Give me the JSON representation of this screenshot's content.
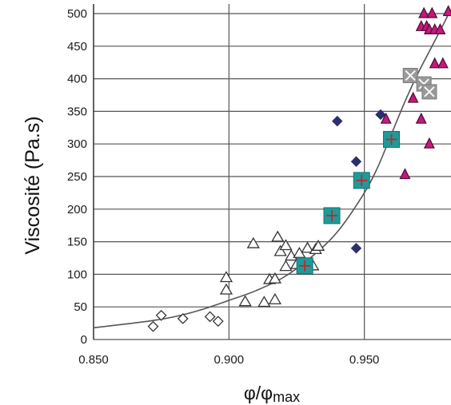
{
  "chart_data": {
    "type": "scatter",
    "title": "",
    "xlabel": "φ/φ",
    "xlabel_subscript": "max",
    "ylabel": "Viscosité (Pa.s)",
    "xlim": [
      0.85,
      0.982
    ],
    "ylim": [
      0,
      500
    ],
    "xticks": [
      0.85,
      0.9,
      0.95
    ],
    "xtick_labels": [
      "0.850",
      "0.900",
      "0.950"
    ],
    "yticks": [
      0,
      50,
      100,
      150,
      200,
      250,
      300,
      350,
      400,
      450,
      500
    ],
    "ytick_labels": [
      "0",
      "50",
      "100",
      "150",
      "200",
      "250",
      "300",
      "350",
      "400",
      "450",
      "500"
    ],
    "grid": true,
    "legend": "none",
    "colors": {
      "grid": "#555555",
      "curve": "#555555",
      "diamond_fill": "#2b2f6b",
      "triangle_fill": "#c8177e",
      "triangle_stroke": "#4a0d30",
      "square_fill": "#1f9a9a",
      "square_stroke": "#137070",
      "cross_color": "#c0282c",
      "xsquare_fill": "#9a9a9a",
      "open_stroke": "#333333"
    },
    "curve": {
      "type": "fit",
      "x": [
        0.85,
        0.87,
        0.88,
        0.89,
        0.9,
        0.91,
        0.92,
        0.93,
        0.94,
        0.95,
        0.955,
        0.96,
        0.965,
        0.97,
        0.975,
        0.98,
        0.981
      ],
      "y": [
        18,
        28,
        35,
        46,
        60,
        75,
        95,
        125,
        165,
        225,
        265,
        315,
        365,
        410,
        450,
        490,
        500
      ]
    },
    "series": [
      {
        "marker": "open-diamond",
        "x": [
          0.872,
          0.875,
          0.883,
          0.893,
          0.896
        ],
        "y": [
          20,
          37,
          32,
          35,
          28
        ]
      },
      {
        "marker": "open-triangle",
        "x": [
          0.899,
          0.899,
          0.906,
          0.909,
          0.913,
          0.915,
          0.917,
          0.917,
          0.918,
          0.919,
          0.921,
          0.921,
          0.923,
          0.925,
          0.926,
          0.929,
          0.931,
          0.932,
          0.933
        ],
        "y": [
          95,
          76,
          58,
          147,
          57,
          92,
          61,
          93,
          157,
          135,
          112,
          144,
          128,
          115,
          132,
          140,
          113,
          138,
          143
        ]
      },
      {
        "marker": "filled-diamond",
        "x": [
          0.94,
          0.947,
          0.947,
          0.956
        ],
        "y": [
          335,
          273,
          140,
          345
        ]
      },
      {
        "marker": "square-cross",
        "x": [
          0.928,
          0.938,
          0.949,
          0.96
        ],
        "y": [
          113,
          190,
          244,
          307
        ]
      },
      {
        "marker": "filled-triangle",
        "x": [
          0.958,
          0.965,
          0.968,
          0.971,
          0.971,
          0.972,
          0.973,
          0.974,
          0.974,
          0.975,
          0.976,
          0.976,
          0.978,
          0.979,
          0.981
        ],
        "y": [
          338,
          253,
          370,
          338,
          480,
          500,
          480,
          475,
          300,
          500,
          423,
          475,
          475,
          423,
          503
        ]
      },
      {
        "marker": "x-square",
        "x": [
          0.967,
          0.972,
          0.974
        ],
        "y": [
          405,
          392,
          380
        ]
      }
    ]
  }
}
